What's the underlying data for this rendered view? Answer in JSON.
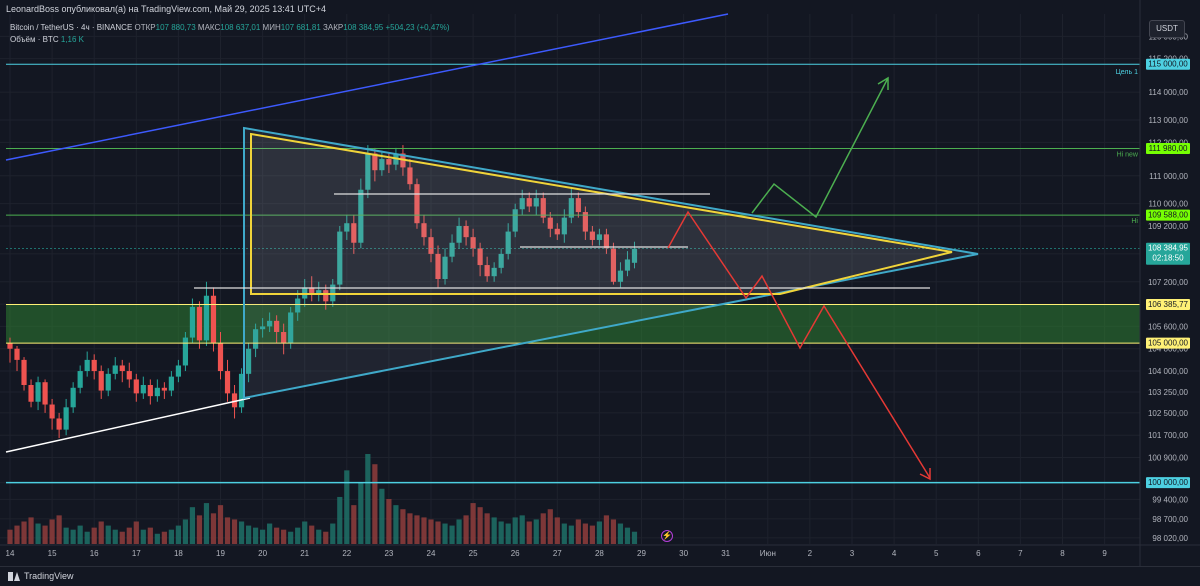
{
  "header": {
    "published": "LeonardBoss опубликовал(а) на TradingView.com, Май 29, 2025 13:41 UTC+4"
  },
  "legend": {
    "symbol": "Bitcoin / TetherUS · 4ч · BINANCE",
    "open_label": "ОТКР",
    "open_value": "107 880,73",
    "high_label": "МАКС",
    "high_value": "108 637,01",
    "low_label": "МИН",
    "low_value": "107 681,81",
    "close_label": "ЗАКР",
    "close_value": "108 384,95",
    "change": "+504,23 (+0,47%)",
    "volume_label": "Объём · BTC",
    "volume_value": "1,16 K"
  },
  "currency_button": "USDT",
  "footer": {
    "brand": "TradingView"
  },
  "colors": {
    "background": "#131722",
    "up": "#26a69a",
    "down": "#ef5350",
    "grid": "#1e222d",
    "triangle": "#3fa9c9",
    "wedge": "#f0d43a",
    "green_zone": "#2e7d32",
    "target_green": "#4caf50",
    "bear_red": "#e53935"
  },
  "chart_data": {
    "type": "candlestick",
    "ylim": [
      97800,
      116800
    ],
    "y_ticks": [
      116000,
      115200,
      114000,
      113000,
      112200,
      111000,
      110000,
      109200,
      108200,
      107200,
      106400,
      105600,
      104800,
      104000,
      103250,
      102500,
      101700,
      100900,
      100000,
      99400,
      98700,
      98020
    ],
    "y_tick_labels": [
      "116 000,00",
      "115 200,00",
      "114 000,00",
      "113 000,00",
      "112 200,00",
      "111 000,00",
      "110 000,00",
      "109 200,00",
      "108 200,00",
      "107 200,00",
      "106 400,00",
      "105 600,00",
      "104 800,00",
      "104 000,00",
      "103 250,00",
      "102 500,00",
      "101 700,00",
      "100 900,00",
      "100 000,00",
      "99 400,00",
      "98 700,00",
      "98 020,00"
    ],
    "x_labels": [
      "14",
      "15",
      "16",
      "17",
      "18",
      "19",
      "20",
      "21",
      "22",
      "23",
      "24",
      "25",
      "26",
      "27",
      "28",
      "29",
      "30",
      "31",
      "Июн",
      "2",
      "3",
      "4",
      "5",
      "6",
      "7",
      "8",
      "9"
    ],
    "price_labels": [
      {
        "value": "115 000,00",
        "color": "#4dd0e1",
        "text_color": "#131722"
      },
      {
        "value": "111 980,00",
        "color": "#76ff03",
        "text_color": "#131722"
      },
      {
        "value": "109 588,00",
        "color": "#76ff03",
        "text_color": "#131722"
      },
      {
        "value": "108 384,95",
        "color": "#26a69a",
        "text_color": "#ffffff"
      },
      {
        "value": "106 385,77",
        "color": "#fff176",
        "text_color": "#131722"
      },
      {
        "value": "105 000,00",
        "color": "#fff176",
        "text_color": "#131722"
      },
      {
        "value": "100 000,00",
        "color": "#4dd0e1",
        "text_color": "#131722"
      }
    ],
    "countdown": "02:18:50",
    "level_labels": {
      "target1": "Цель 1",
      "hi_new": "Hi new",
      "hi": "Hi"
    },
    "levels": {
      "target": 115000,
      "hi_new": 111980,
      "hi": 109588,
      "zone_top": 106385.77,
      "zone_bottom": 105000,
      "support": 100000,
      "last": 108384.95
    },
    "candles": [
      [
        105000,
        104800,
        105200,
        104300
      ],
      [
        104800,
        104400,
        104900,
        104000
      ],
      [
        104400,
        103500,
        104500,
        103300
      ],
      [
        103500,
        102900,
        103700,
        102700
      ],
      [
        102900,
        103600,
        103800,
        102600
      ],
      [
        103600,
        102800,
        103700,
        102500
      ],
      [
        102800,
        102300,
        103000,
        101900
      ],
      [
        102300,
        101900,
        102500,
        101600
      ],
      [
        101900,
        102700,
        103000,
        101700
      ],
      [
        102700,
        103400,
        103600,
        102500
      ],
      [
        103400,
        104000,
        104200,
        103200
      ],
      [
        104000,
        104400,
        104700,
        103800
      ],
      [
        104400,
        104000,
        104600,
        103700
      ],
      [
        104000,
        103300,
        104200,
        103000
      ],
      [
        103300,
        103900,
        104100,
        103100
      ],
      [
        103900,
        104200,
        104500,
        103700
      ],
      [
        104200,
        104000,
        104400,
        103600
      ],
      [
        104000,
        103700,
        104300,
        103400
      ],
      [
        103700,
        103200,
        103900,
        102900
      ],
      [
        103200,
        103500,
        103800,
        103000
      ],
      [
        103500,
        103100,
        103700,
        102800
      ],
      [
        103100,
        103400,
        103700,
        102900
      ],
      [
        103400,
        103300,
        103600,
        103000
      ],
      [
        103300,
        103800,
        104000,
        103100
      ],
      [
        103800,
        104200,
        104400,
        103600
      ],
      [
        104200,
        105200,
        105400,
        104000
      ],
      [
        105200,
        106300,
        106600,
        105000
      ],
      [
        106300,
        105100,
        106500,
        104800
      ],
      [
        105100,
        106700,
        107200,
        104900
      ],
      [
        106700,
        105000,
        107000,
        104700
      ],
      [
        105000,
        104000,
        105400,
        103700
      ],
      [
        104000,
        103200,
        104400,
        102900
      ],
      [
        103200,
        102700,
        103500,
        102300
      ],
      [
        102700,
        103900,
        104100,
        102500
      ],
      [
        103900,
        104800,
        105000,
        103600
      ],
      [
        104800,
        105500,
        105700,
        104500
      ],
      [
        105500,
        105600,
        105900,
        105200
      ],
      [
        105600,
        105800,
        106100,
        105400
      ],
      [
        105800,
        105400,
        106000,
        105000
      ],
      [
        105400,
        105000,
        105700,
        104600
      ],
      [
        105000,
        106100,
        106300,
        104800
      ],
      [
        106100,
        106600,
        106900,
        105800
      ],
      [
        106600,
        107000,
        107300,
        106300
      ],
      [
        107000,
        106800,
        107400,
        106500
      ],
      [
        106800,
        106900,
        107200,
        106500
      ],
      [
        106900,
        106500,
        107100,
        106200
      ],
      [
        106500,
        107100,
        107300,
        106300
      ],
      [
        107100,
        109000,
        109200,
        106900
      ],
      [
        109000,
        109300,
        109600,
        108700
      ],
      [
        109300,
        108600,
        109600,
        108200
      ],
      [
        108600,
        110500,
        110900,
        108400
      ],
      [
        110500,
        111800,
        112100,
        110200
      ],
      [
        111800,
        111200,
        112000,
        110800
      ],
      [
        111200,
        111600,
        111900,
        111000
      ],
      [
        111600,
        111400,
        111800,
        111100
      ],
      [
        111400,
        111800,
        112000,
        111200
      ],
      [
        111800,
        111300,
        112100,
        111000
      ],
      [
        111300,
        110700,
        111600,
        110500
      ],
      [
        110700,
        109300,
        110900,
        109100
      ],
      [
        109300,
        108800,
        109600,
        108500
      ],
      [
        108800,
        108200,
        109100,
        107900
      ],
      [
        108200,
        107300,
        108500,
        107000
      ],
      [
        107300,
        108100,
        108400,
        107100
      ],
      [
        108100,
        108600,
        108900,
        107900
      ],
      [
        108600,
        109200,
        109500,
        108400
      ],
      [
        109200,
        108800,
        109400,
        108500
      ],
      [
        108800,
        108400,
        109100,
        108100
      ],
      [
        108400,
        107800,
        108600,
        107400
      ],
      [
        107800,
        107400,
        108100,
        107200
      ],
      [
        107400,
        107700,
        107900,
        107200
      ],
      [
        107700,
        108200,
        108400,
        107500
      ],
      [
        108200,
        109000,
        109300,
        108000
      ],
      [
        109000,
        109800,
        110000,
        108800
      ],
      [
        109800,
        110200,
        110500,
        109600
      ],
      [
        110200,
        109900,
        110400,
        109700
      ],
      [
        109900,
        110200,
        110500,
        109600
      ],
      [
        110200,
        109500,
        110400,
        109300
      ],
      [
        109500,
        109100,
        109700,
        108800
      ],
      [
        109100,
        108900,
        109300,
        108700
      ],
      [
        108900,
        109500,
        109800,
        108600
      ],
      [
        109500,
        110200,
        110600,
        109300
      ],
      [
        110200,
        109700,
        110400,
        109500
      ],
      [
        109700,
        109000,
        109900,
        108700
      ],
      [
        109000,
        108700,
        109200,
        108500
      ],
      [
        108700,
        108900,
        109100,
        108500
      ],
      [
        108900,
        108400,
        109100,
        108200
      ],
      [
        108400,
        107200,
        108600,
        107100
      ],
      [
        107200,
        107600,
        107900,
        107000
      ],
      [
        107600,
        108000,
        108300,
        107400
      ],
      [
        107880.73,
        108384.95,
        108637.01,
        107681.81
      ]
    ],
    "volumes": [
      14,
      18,
      22,
      26,
      20,
      18,
      24,
      28,
      16,
      14,
      18,
      12,
      16,
      22,
      18,
      14,
      12,
      16,
      22,
      14,
      16,
      10,
      12,
      14,
      18,
      24,
      36,
      28,
      40,
      30,
      38,
      26,
      24,
      22,
      18,
      16,
      14,
      20,
      16,
      14,
      12,
      16,
      22,
      18,
      14,
      12,
      20,
      46,
      72,
      38,
      60,
      88,
      78,
      54,
      44,
      38,
      34,
      30,
      28,
      26,
      24,
      22,
      20,
      18,
      24,
      28,
      40,
      36,
      30,
      26,
      22,
      20,
      26,
      28,
      22,
      24,
      30,
      34,
      26,
      20,
      18,
      24,
      20,
      18,
      22,
      28,
      24,
      20,
      16,
      12
    ]
  }
}
